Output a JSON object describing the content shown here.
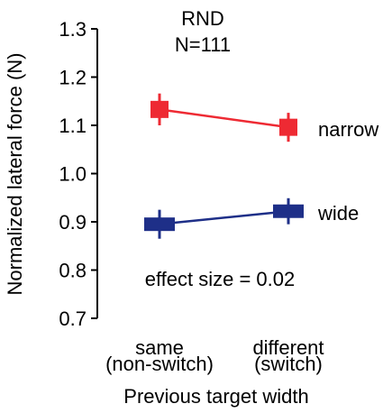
{
  "chart_data": {
    "type": "line",
    "title": "RND",
    "subtitle": "N=111",
    "xlabel": "Previous target width",
    "ylabel": "Normalized lateral force (N)",
    "categories": [
      [
        "same",
        "(non-switch)"
      ],
      [
        "different",
        "(switch)"
      ]
    ],
    "ylim": [
      0.7,
      1.3
    ],
    "yticks": [
      "0.7",
      "0.8",
      "0.9",
      "1.0",
      "1.1",
      "1.2",
      "1.3"
    ],
    "grid": false,
    "series": [
      {
        "name": "narrow",
        "values": [
          1.133,
          1.096
        ],
        "error": [
          0.033,
          0.03
        ],
        "color": "#ee2a33",
        "marker": "square"
      },
      {
        "name": "wide",
        "values": [
          0.895,
          0.922
        ],
        "error": [
          0.03,
          0.027
        ],
        "color": "#1e2f88",
        "marker": "wide-rect"
      }
    ],
    "annotations": [
      "effect size = 0.02"
    ]
  }
}
